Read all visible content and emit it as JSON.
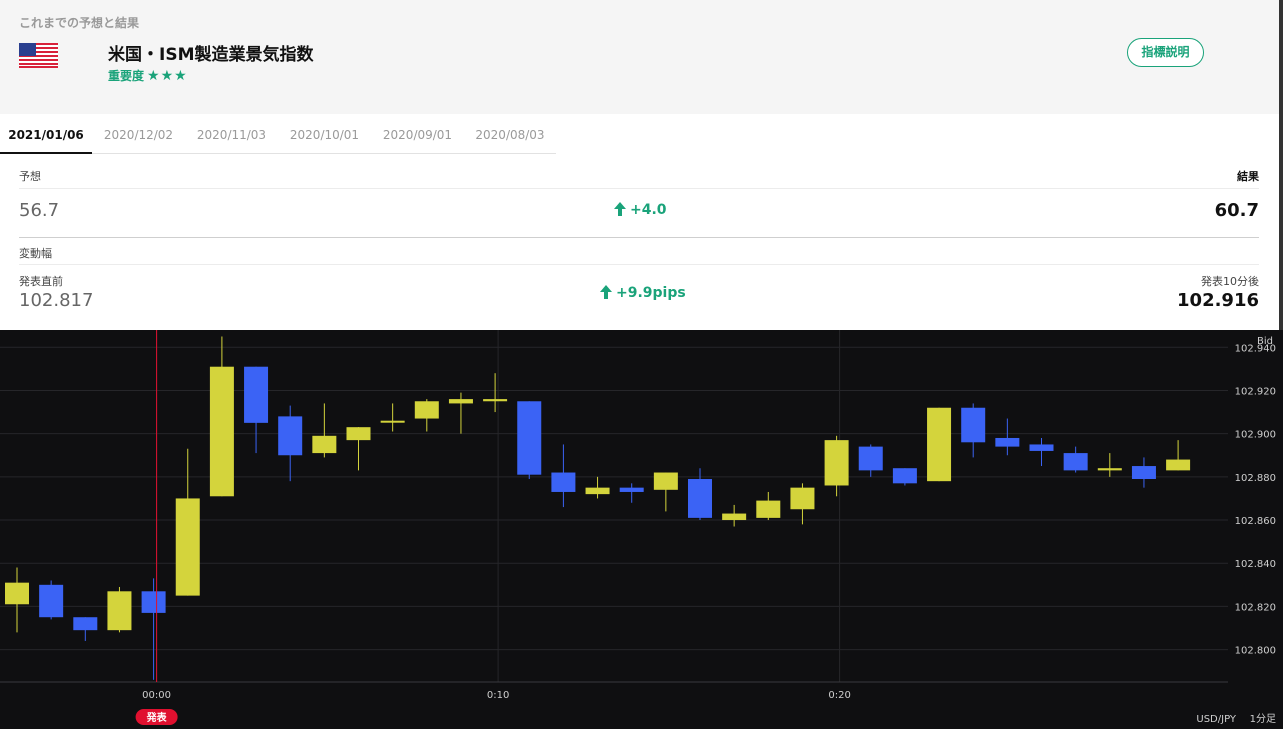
{
  "header": {
    "section_title": "これまでの予想と結果",
    "flag_icon": "us-flag-icon",
    "indicator_name": "米国・ISM製造業景気指数",
    "importance_label": "重要度",
    "importance_stars": "★★★",
    "info_button": "指標説明"
  },
  "tabs": [
    {
      "label": "2021/01/06",
      "active": true
    },
    {
      "label": "2020/12/02",
      "active": false
    },
    {
      "label": "2020/11/03",
      "active": false
    },
    {
      "label": "2020/10/01",
      "active": false
    },
    {
      "label": "2020/09/01",
      "active": false
    },
    {
      "label": "2020/08/03",
      "active": false
    }
  ],
  "forecast": {
    "label": "予想",
    "value": "56.7",
    "result_label": "結果",
    "result_value": "60.7",
    "diff": "+4.0"
  },
  "change": {
    "label": "変動幅",
    "before_label": "発表直前",
    "before_value": "102.817",
    "after_label": "発表10分後",
    "after_value": "102.916",
    "diff": "+9.9pips"
  },
  "colors": {
    "accent": "#1aa37a",
    "up_candle": "#d4d43c",
    "down_candle": "#3b63f5",
    "release_line": "#e0102f",
    "chart_bg": "#0f0f11"
  },
  "chart_data": {
    "type": "candlestick",
    "price_label": "Bid",
    "pair": "USD/JPY",
    "timeframe": "1分足",
    "release_marker": "発表",
    "release_x": 4,
    "ylim": [
      102.785,
      102.948
    ],
    "y_ticks": [
      "102.800",
      "102.820",
      "102.840",
      "102.860",
      "102.880",
      "102.900",
      "102.920",
      "102.940"
    ],
    "x_ticks": [
      {
        "x": 4,
        "label": "00:00"
      },
      {
        "x": 14,
        "label": "0:10"
      },
      {
        "x": 24,
        "label": "0:20"
      }
    ],
    "candles": [
      {
        "o": 102.821,
        "h": 102.838,
        "l": 102.808,
        "c": 102.831
      },
      {
        "o": 102.83,
        "h": 102.832,
        "l": 102.814,
        "c": 102.815
      },
      {
        "o": 102.815,
        "h": 102.815,
        "l": 102.804,
        "c": 102.809
      },
      {
        "o": 102.809,
        "h": 102.829,
        "l": 102.808,
        "c": 102.827
      },
      {
        "o": 102.827,
        "h": 102.833,
        "l": 102.786,
        "c": 102.817
      },
      {
        "o": 102.825,
        "h": 102.893,
        "l": 102.825,
        "c": 102.87
      },
      {
        "o": 102.871,
        "h": 102.945,
        "l": 102.871,
        "c": 102.931
      },
      {
        "o": 102.931,
        "h": 102.931,
        "l": 102.891,
        "c": 102.905
      },
      {
        "o": 102.908,
        "h": 102.913,
        "l": 102.878,
        "c": 102.89
      },
      {
        "o": 102.891,
        "h": 102.914,
        "l": 102.889,
        "c": 102.899
      },
      {
        "o": 102.897,
        "h": 102.903,
        "l": 102.883,
        "c": 102.903
      },
      {
        "o": 102.906,
        "h": 102.914,
        "l": 102.901,
        "c": 102.906
      },
      {
        "o": 102.907,
        "h": 102.916,
        "l": 102.901,
        "c": 102.915
      },
      {
        "o": 102.914,
        "h": 102.919,
        "l": 102.9,
        "c": 102.916
      },
      {
        "o": 102.915,
        "h": 102.928,
        "l": 102.91,
        "c": 102.916
      },
      {
        "o": 102.915,
        "h": 102.915,
        "l": 102.879,
        "c": 102.881
      },
      {
        "o": 102.882,
        "h": 102.895,
        "l": 102.866,
        "c": 102.873
      },
      {
        "o": 102.872,
        "h": 102.88,
        "l": 102.87,
        "c": 102.875
      },
      {
        "o": 102.875,
        "h": 102.877,
        "l": 102.868,
        "c": 102.873
      },
      {
        "o": 102.874,
        "h": 102.882,
        "l": 102.864,
        "c": 102.882
      },
      {
        "o": 102.879,
        "h": 102.884,
        "l": 102.86,
        "c": 102.861
      },
      {
        "o": 102.86,
        "h": 102.867,
        "l": 102.857,
        "c": 102.863
      },
      {
        "o": 102.861,
        "h": 102.873,
        "l": 102.86,
        "c": 102.869
      },
      {
        "o": 102.865,
        "h": 102.877,
        "l": 102.858,
        "c": 102.875
      },
      {
        "o": 102.876,
        "h": 102.899,
        "l": 102.871,
        "c": 102.897
      },
      {
        "o": 102.894,
        "h": 102.895,
        "l": 102.88,
        "c": 102.883
      },
      {
        "o": 102.884,
        "h": 102.884,
        "l": 102.876,
        "c": 102.877
      },
      {
        "o": 102.878,
        "h": 102.912,
        "l": 102.878,
        "c": 102.912
      },
      {
        "o": 102.912,
        "h": 102.914,
        "l": 102.889,
        "c": 102.896
      },
      {
        "o": 102.898,
        "h": 102.907,
        "l": 102.89,
        "c": 102.894
      },
      {
        "o": 102.895,
        "h": 102.898,
        "l": 102.885,
        "c": 102.892
      },
      {
        "o": 102.891,
        "h": 102.894,
        "l": 102.882,
        "c": 102.883
      },
      {
        "o": 102.883,
        "h": 102.891,
        "l": 102.88,
        "c": 102.884
      },
      {
        "o": 102.885,
        "h": 102.889,
        "l": 102.875,
        "c": 102.879
      },
      {
        "o": 102.883,
        "h": 102.897,
        "l": 102.883,
        "c": 102.888
      }
    ]
  }
}
